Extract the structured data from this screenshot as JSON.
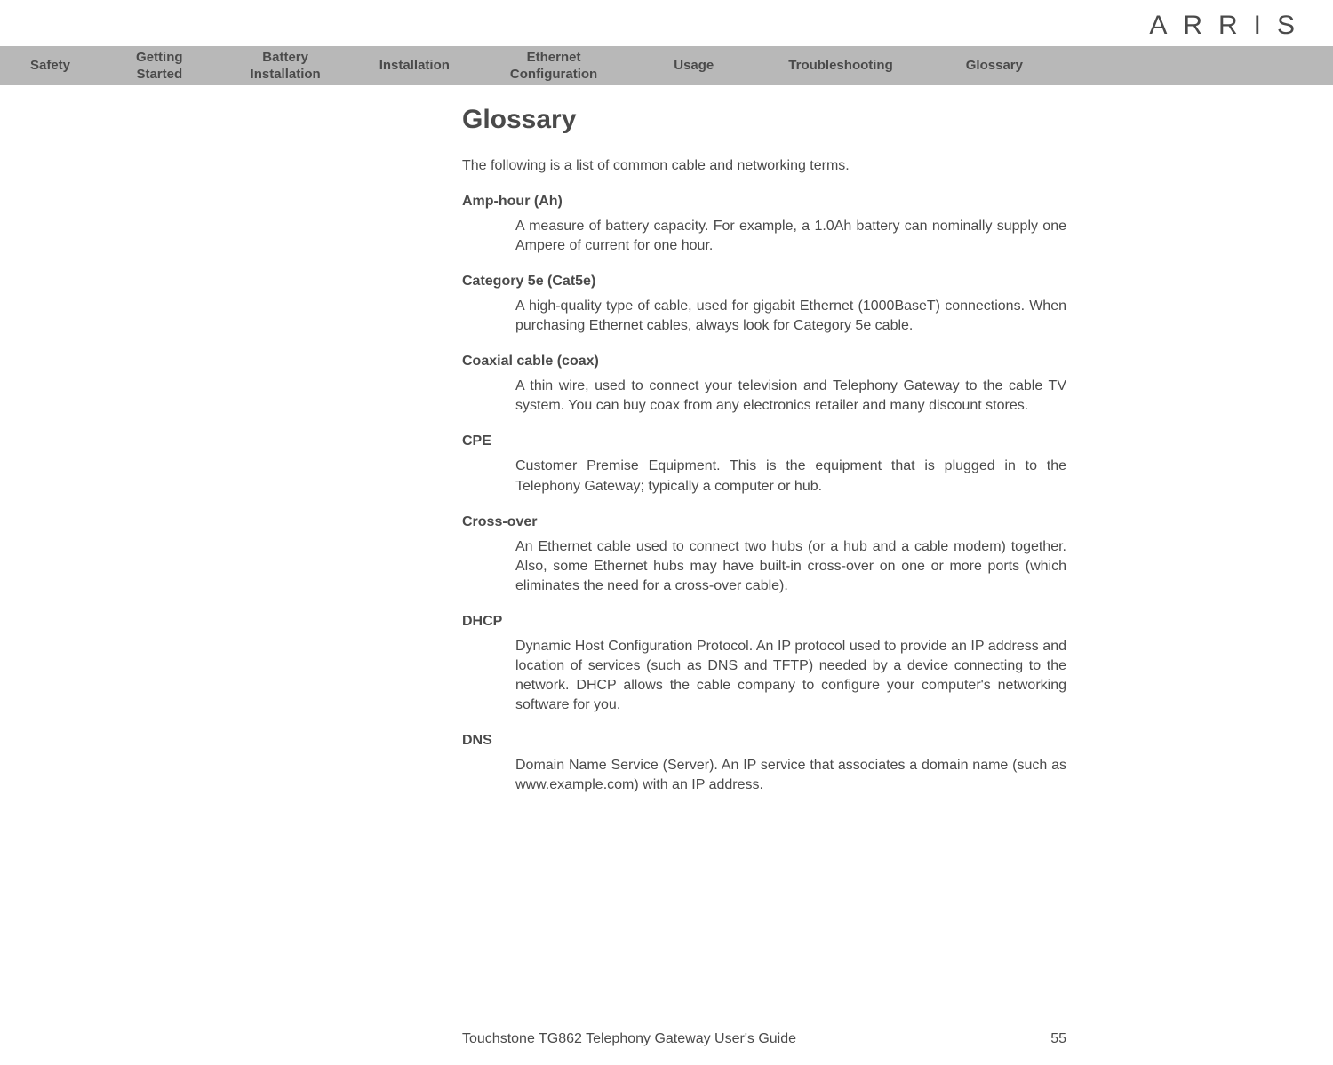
{
  "logo": "ARRIS",
  "nav": {
    "items": [
      "Safety",
      "Getting\nStarted",
      "Battery\nInstallation",
      "Installation",
      "Ethernet\nConfiguration",
      "Usage",
      "Troubleshooting",
      "Glossary"
    ]
  },
  "page": {
    "title": "Glossary",
    "intro": "The following is a list of common cable and networking terms.",
    "entries": [
      {
        "term": "Amp-hour (Ah)",
        "def": "A measure of battery capacity. For example, a 1.0Ah battery can nominally supply one Ampere of current for one hour."
      },
      {
        "term": "Category 5e (Cat5e)",
        "def": "A high-quality type of cable, used for gigabit Ethernet (1000BaseT) connections. When purchasing Ethernet cables, always look for Category 5e cable."
      },
      {
        "term": "Coaxial cable (coax)",
        "def": "A thin wire, used to connect your television and Telephony Gateway to the cable TV system. You can buy coax from any electronics retailer and many discount stores."
      },
      {
        "term": "CPE",
        "def": "Customer Premise Equipment. This is the equipment that is plugged in to the Telephony Gateway; typically a computer or hub."
      },
      {
        "term": "Cross-over",
        "def": "An Ethernet cable used to connect two hubs (or a hub and a cable modem) together. Also, some Ethernet hubs may have built-in cross-over on one or more ports (which eliminates the need for a cross-over cable)."
      },
      {
        "term": "DHCP",
        "def": "Dynamic Host Configuration Protocol. An IP protocol used to provide an IP address and location of services (such as DNS and TFTP) needed by a device connecting to the network. DHCP allows the cable company to configure your computer's networking software for you."
      },
      {
        "term": "DNS",
        "def": "Domain Name Service (Server). An IP service that associates a domain name (such as www.example.com) with an IP address."
      }
    ]
  },
  "footer": {
    "guide": "Touchstone TG862 Telephony Gateway User's Guide",
    "page": "55"
  },
  "colors": {
    "navbar_bg": "#b8b8b8",
    "text": "#4a4a4a",
    "background": "#ffffff"
  },
  "layout": {
    "nav_paddings": [
      34,
      40,
      36,
      30,
      38,
      48,
      36,
      46
    ]
  }
}
